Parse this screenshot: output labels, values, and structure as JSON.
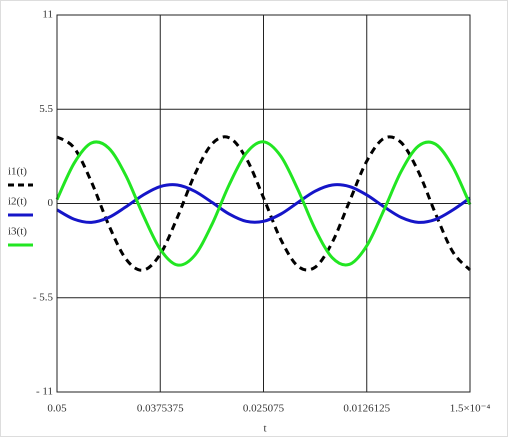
{
  "chart_data": {
    "type": "line",
    "x_label": "t",
    "x": [
      0.05,
      0.047923,
      0.045846,
      0.043769,
      0.041692,
      0.039615,
      0.037538,
      0.03546,
      0.033383,
      0.031306,
      0.029229,
      0.027152,
      0.025075,
      0.022998,
      0.020921,
      0.018844,
      0.016767,
      0.01469,
      0.012613,
      0.010535,
      0.008458,
      0.006381,
      0.004304,
      0.002227,
      0.00015
    ],
    "series": [
      {
        "name": "i1(t)",
        "color": "#000000",
        "dashed": true,
        "values": [
          3.89,
          3.24,
          1.26,
          -1.24,
          -3.23,
          -3.89,
          -2.96,
          -0.8,
          1.68,
          3.47,
          3.84,
          2.63,
          0.34,
          -2.09,
          -3.66,
          -3.72,
          -2.26,
          0.13,
          2.47,
          3.8,
          3.56,
          1.86,
          -0.6,
          -2.82,
          -3.88
        ]
      },
      {
        "name": "i2(t)",
        "color": "#1515c8",
        "dashed": false,
        "values": [
          -0.37,
          -0.92,
          -1.1,
          -0.82,
          -0.2,
          0.49,
          0.99,
          1.08,
          0.72,
          0.07,
          -0.61,
          -1.04,
          -1.04,
          -0.62,
          0.06,
          0.72,
          1.08,
          0.99,
          0.5,
          -0.19,
          -0.81,
          -1.1,
          -0.93,
          -0.38,
          0.32
        ]
      },
      {
        "name": "i3(t)",
        "color": "#22e622",
        "dashed": false,
        "values": [
          0.23,
          2.36,
          3.53,
          3.24,
          1.63,
          -0.66,
          -2.67,
          -3.59,
          -3.03,
          -1.23,
          1.08,
          2.94,
          3.6,
          2.77,
          0.81,
          -1.49,
          -3.17,
          -3.55,
          -2.47,
          -0.38,
          1.87,
          3.35,
          3.46,
          2.14,
          -0.06
        ]
      }
    ],
    "xlim": [
      0.05,
      0.00015
    ],
    "xticks": [
      0.05,
      0.0375375,
      0.025075,
      0.0126125,
      {
        "value": 0.00015,
        "label": "1.5×10⁻⁴"
      }
    ],
    "ylim": [
      -11,
      11
    ],
    "yticks": [
      11,
      5.5,
      0,
      {
        "value": -5.5,
        "label": "- 5.5"
      },
      {
        "value": -11,
        "label": "- 11"
      }
    ],
    "grid": true
  }
}
